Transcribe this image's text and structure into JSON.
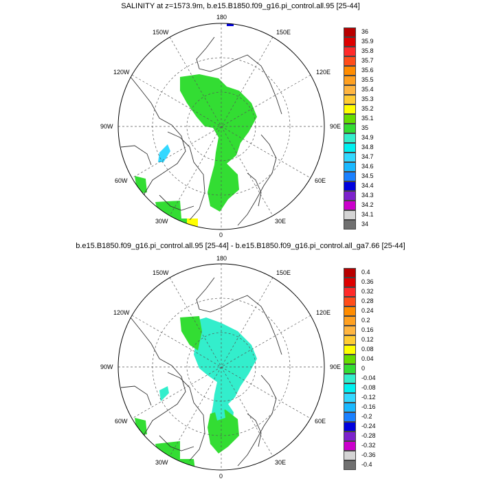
{
  "panels": [
    {
      "title": "SALINITY at z=1573.9m, b.e15.B1850.f09_g16.pi_control.all.95 [25-44]",
      "lon_labels": {
        "top": "180",
        "bottom": "0",
        "left": "90W",
        "right": "90E",
        "ul2": "150W",
        "ul1": "120W",
        "ll1": "60W",
        "ll2": "30W",
        "ur2": "150E",
        "ur1": "120E",
        "lr1": "60E",
        "lr2": "30E"
      },
      "colorbar": {
        "labels": [
          "36",
          "35.9",
          "35.8",
          "35.7",
          "35.6",
          "35.5",
          "35.4",
          "35.3",
          "35.2",
          "35.1",
          "35",
          "34.9",
          "34.8",
          "34.7",
          "34.6",
          "34.5",
          "34.4",
          "34.3",
          "34.2",
          "34.1",
          "34"
        ],
        "colors": [
          "#b80000",
          "#dd0000",
          "#ff2a2a",
          "#ff4d1a",
          "#ff8c00",
          "#ffa020",
          "#ffb540",
          "#ffcc33",
          "#ffff00",
          "#66dd00",
          "#33dd33",
          "#33eecc",
          "#00f0f0",
          "#33d8ff",
          "#1ab8ff",
          "#1a80ff",
          "#0000dd",
          "#7d22cc",
          "#cc00cc",
          "#d4d4d4",
          "#707070"
        ]
      }
    },
    {
      "title": "b.e15.B1850.f09_g16.pi_control.all.95 [25-44] - b.e15.B1850.f09_g16.pi_control.all_ga7.66 [25-44]",
      "lon_labels": {
        "top": "180",
        "bottom": "0",
        "left": "90W",
        "right": "90E",
        "ul2": "150W",
        "ul1": "120W",
        "ll1": "60W",
        "ll2": "30W",
        "ur2": "150E",
        "ur1": "120E",
        "lr1": "60E",
        "lr2": "30E"
      },
      "colorbar": {
        "labels": [
          "0.4",
          "0.36",
          "0.32",
          "0.28",
          "0.24",
          "0.2",
          "0.16",
          "0.12",
          "0.08",
          "0.04",
          "0",
          "-0.04",
          "-0.08",
          "-0.12",
          "-0.16",
          "-0.2",
          "-0.24",
          "-0.28",
          "-0.32",
          "-0.36",
          "-0.4"
        ],
        "colors": [
          "#b80000",
          "#dd0000",
          "#ff2a2a",
          "#ff4d1a",
          "#ff8c00",
          "#ffa020",
          "#ffb540",
          "#ffcc33",
          "#ffff00",
          "#66dd00",
          "#33dd33",
          "#33eecc",
          "#00f0f0",
          "#33d8ff",
          "#1ab8ff",
          "#1a80ff",
          "#0000dd",
          "#7d22cc",
          "#cc00cc",
          "#d4d4d4",
          "#707070"
        ]
      }
    }
  ]
}
